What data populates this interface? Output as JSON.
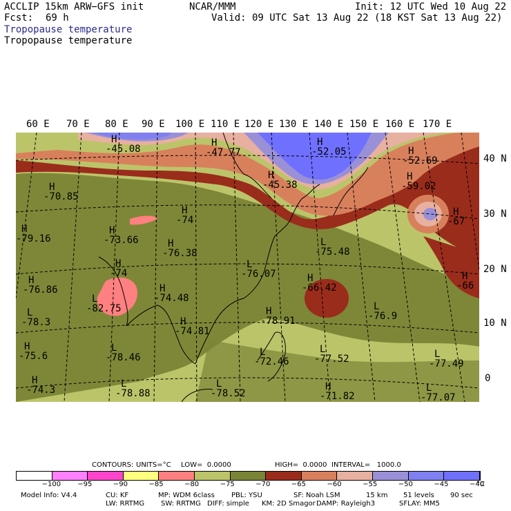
{
  "header": {
    "model": "ACCLIP 15km ARW−GFS init",
    "fcst_label": "Fcst:",
    "fcst_value": "69 h",
    "org": "NCAR/MMM",
    "init": "Init: 12 UTC Wed 10 Aug 22",
    "valid": "Valid: 09 UTC Sat 13 Aug 22 (18 KST Sat 13 Aug 22)",
    "field_1": "Tropopause temperature",
    "field_2": "Tropopause temperature"
  },
  "lon_labels": [
    "60 E",
    "70 E",
    "80 E",
    "90 E",
    "100 E",
    "110 E",
    "120 E",
    "130 E",
    "140 E",
    "150 E",
    "160 E",
    "170 E"
  ],
  "lat_labels": [
    "40 N",
    "30 N",
    "20 N",
    "10 N",
    "0"
  ],
  "centers": [
    {
      "type": "H",
      "value": "-45.08"
    },
    {
      "type": "H",
      "value": "-47.77"
    },
    {
      "type": "H",
      "value": "-52.05"
    },
    {
      "type": "H",
      "value": "-52.69"
    },
    {
      "type": "H",
      "value": "-45.38"
    },
    {
      "type": "H",
      "value": "-59.02"
    },
    {
      "type": "H",
      "value": "-70.85"
    },
    {
      "type": "H",
      "value": "-74"
    },
    {
      "type": "H",
      "value": "-67"
    },
    {
      "type": "H",
      "value": "-79.16"
    },
    {
      "type": "H",
      "value": "-73.66"
    },
    {
      "type": "H",
      "value": "-76.38"
    },
    {
      "type": "L",
      "value": "-75.48"
    },
    {
      "type": "H",
      "value": "-74"
    },
    {
      "type": "L",
      "value": "-76.07"
    },
    {
      "type": "H",
      "value": "-66"
    },
    {
      "type": "H",
      "value": "-76.86"
    },
    {
      "type": "H",
      "value": "-74.48"
    },
    {
      "type": "H",
      "value": "-66.42"
    },
    {
      "type": "L",
      "value": "-82.75"
    },
    {
      "type": "L",
      "value": "-76.9"
    },
    {
      "type": "L",
      "value": "-78.3"
    },
    {
      "type": "H",
      "value": "-78.91"
    },
    {
      "type": "H",
      "value": "-74.81"
    },
    {
      "type": "H",
      "value": "-75.6"
    },
    {
      "type": "L",
      "value": "-78.46"
    },
    {
      "type": "L",
      "value": "-72.46"
    },
    {
      "type": "L",
      "value": "-77.52"
    },
    {
      "type": "L",
      "value": "-77.49"
    },
    {
      "type": "H",
      "value": "-74.3"
    },
    {
      "type": "L",
      "value": "-78.88"
    },
    {
      "type": "L",
      "value": "-78.52"
    },
    {
      "type": "H",
      "value": "-71.82"
    },
    {
      "type": "L",
      "value": "-77.07"
    }
  ],
  "contour_info": {
    "contours": "CONTOURS:",
    "units": "UNITS=°C",
    "low": "LOW=  0.0000",
    "high": "HIGH=  0.0000",
    "interval": "INTERVAL=   1000.0"
  },
  "colorbar": {
    "colors": [
      "#ffffff",
      "#ff80ff",
      "#ff44cc",
      "#ffff80",
      "#ff8080",
      "#bcc46a",
      "#7a8436",
      "#9a2c1c",
      "#d8805c",
      "#e8b0a0",
      "#9a90d8",
      "#8080f0",
      "#7070ff"
    ],
    "ticks": [
      "−100",
      "−95",
      "−90",
      "−85",
      "−80",
      "−75",
      "−70",
      "−65",
      "−60",
      "−55",
      "−50",
      "−45",
      "−40"
    ],
    "unit": "°C"
  },
  "model_info": {
    "line1": [
      "Model Info: V4.4",
      "CU: KF",
      "MP: WDM 6class",
      "PBL: YSU",
      "SF: Noah LSM",
      "15 km",
      "51 levels",
      "90 sec"
    ],
    "line2": [
      "LW: RRTMG",
      "SW: RRTMG",
      "DIFF: simple",
      "KM: 2D Smagor",
      "DAMP: Rayleigh3",
      "SFLAY: MM5"
    ]
  }
}
